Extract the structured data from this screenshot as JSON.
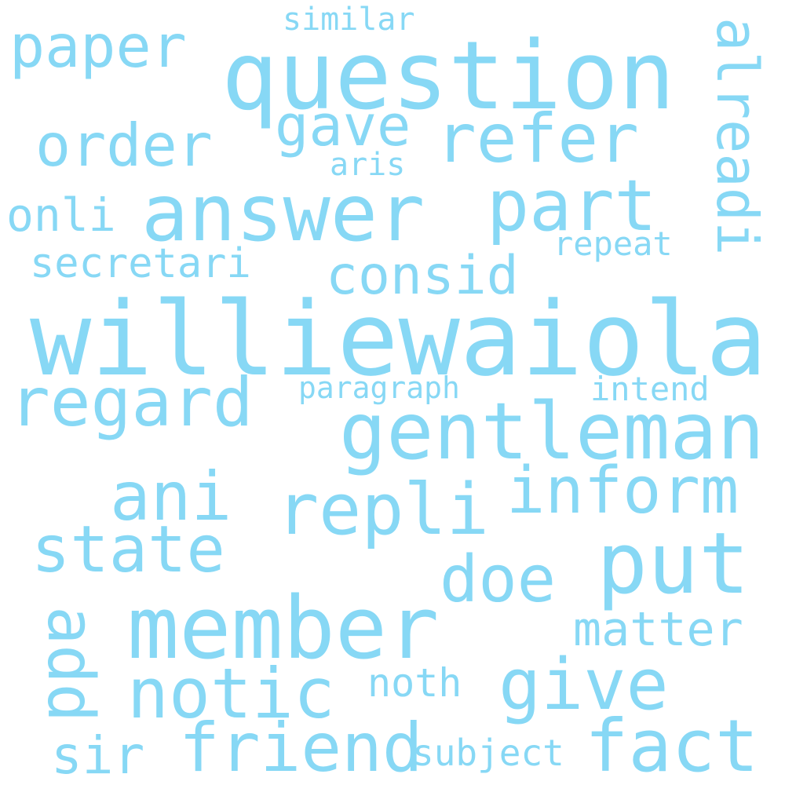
{
  "word_color": "#87d8f5",
  "background_color": "#ffffff",
  "words": {
    "similar": "similar",
    "paper": "paper",
    "question": "question",
    "alreadi": "alreadi",
    "order": "order",
    "gave": "gave",
    "refer": "refer",
    "aris": "aris",
    "onli": "onli",
    "answer": "answer",
    "part": "part",
    "secretari": "secretari",
    "repeat": "repeat",
    "consid": "consid",
    "williewaiola": "williewaiola",
    "regard": "regard",
    "paragraph": "paragraph",
    "intend": "intend",
    "gentleman": "gentleman",
    "ani": "ani",
    "repli": "repli",
    "inform": "inform",
    "state": "state",
    "put": "put",
    "doe": "doe",
    "member": "member",
    "add": "add",
    "matter": "matter",
    "notic": "notic",
    "noth": "noth",
    "give": "give",
    "sir": "sir",
    "friend": "friend",
    "subject": "subject",
    "fact": "fact"
  }
}
